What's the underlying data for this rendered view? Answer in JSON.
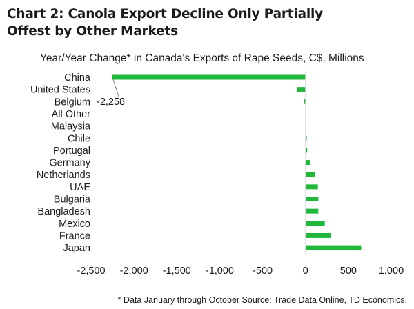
{
  "title_lines": [
    "Chart 2: Canola Export Decline Only Partially",
    "Offest by Other Markets"
  ],
  "footnote": "* Data January through October Source: Trade Data Online, TD Economics.",
  "chart_data": {
    "type": "bar",
    "orientation": "horizontal",
    "title": "Chart 2: Canola Export Decline Only Partially Offest by Other Markets",
    "subtitle": "Year/Year Change* in Canada's Exports of Rape Seeds, C$, Millions",
    "categories": [
      "China",
      "United States",
      "Belgium",
      "All Other",
      "Malaysia",
      "Chile",
      "Portugal",
      "Germany",
      "Netherlands",
      "UAE",
      "Bulgaria",
      "Bangladesh",
      "Mexico",
      "France",
      "Japan"
    ],
    "values": [
      -2258,
      -95,
      -20,
      0,
      5,
      15,
      20,
      50,
      115,
      145,
      150,
      150,
      225,
      300,
      650
    ],
    "bar_color": "#1fb83a",
    "xlim": [
      -2500,
      1000
    ],
    "xticks": [
      -2500,
      -2000,
      -1500,
      -1000,
      -500,
      0,
      500,
      1000
    ],
    "xtick_labels": [
      "-2,500",
      "-2,000",
      "-1,500",
      "-1,000",
      "-500",
      "0",
      "500",
      "1,000"
    ],
    "grid": false,
    "annotation": {
      "category": "China",
      "text": "-2,258"
    }
  }
}
